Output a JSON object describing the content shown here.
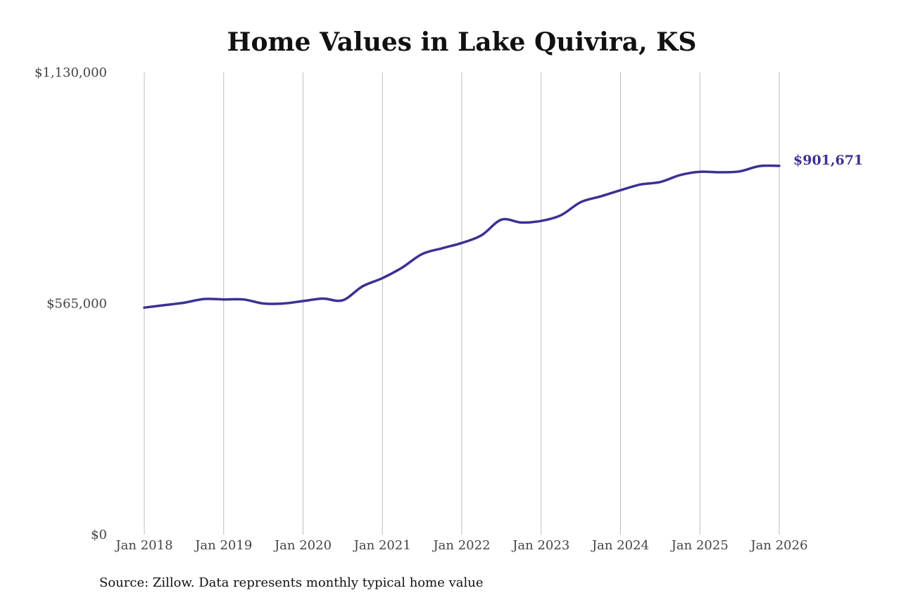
{
  "chart_data": {
    "type": "line",
    "title": "Home Values in Lake Quivira, KS",
    "xlabel": "",
    "ylabel": "",
    "ylim": [
      0,
      1130000
    ],
    "y_ticks": [
      {
        "value": 0,
        "label": "$0"
      },
      {
        "value": 565000,
        "label": "$565,000"
      },
      {
        "value": 1130000,
        "label": "$1,130,000"
      }
    ],
    "x_range": [
      "2018-01",
      "2026-01"
    ],
    "x_ticks": [
      {
        "date": "2018-01",
        "label": "Jan 2018"
      },
      {
        "date": "2019-01",
        "label": "Jan 2019"
      },
      {
        "date": "2020-01",
        "label": "Jan 2020"
      },
      {
        "date": "2021-01",
        "label": "Jan 2021"
      },
      {
        "date": "2022-01",
        "label": "Jan 2022"
      },
      {
        "date": "2023-01",
        "label": "Jan 2023"
      },
      {
        "date": "2024-01",
        "label": "Jan 2024"
      },
      {
        "date": "2025-01",
        "label": "Jan 2025"
      },
      {
        "date": "2026-01",
        "label": "Jan 2026"
      }
    ],
    "grid": {
      "vertical": true,
      "horizontal": false
    },
    "series": [
      {
        "color": "#3b3193",
        "points": [
          {
            "x": "2018-01",
            "y": 555000
          },
          {
            "x": "2018-04",
            "y": 561000
          },
          {
            "x": "2018-07",
            "y": 567000
          },
          {
            "x": "2018-10",
            "y": 576000
          },
          {
            "x": "2019-01",
            "y": 575000
          },
          {
            "x": "2019-04",
            "y": 575000
          },
          {
            "x": "2019-07",
            "y": 565000
          },
          {
            "x": "2019-10",
            "y": 565000
          },
          {
            "x": "2020-01",
            "y": 571000
          },
          {
            "x": "2020-04",
            "y": 577000
          },
          {
            "x": "2020-07",
            "y": 573000
          },
          {
            "x": "2020-10",
            "y": 607000
          },
          {
            "x": "2021-01",
            "y": 627000
          },
          {
            "x": "2021-04",
            "y": 653000
          },
          {
            "x": "2021-07",
            "y": 686000
          },
          {
            "x": "2021-10",
            "y": 700000
          },
          {
            "x": "2022-01",
            "y": 713000
          },
          {
            "x": "2022-04",
            "y": 732000
          },
          {
            "x": "2022-07",
            "y": 770000
          },
          {
            "x": "2022-10",
            "y": 763000
          },
          {
            "x": "2023-01",
            "y": 767000
          },
          {
            "x": "2023-04",
            "y": 781000
          },
          {
            "x": "2023-07",
            "y": 813000
          },
          {
            "x": "2023-10",
            "y": 827000
          },
          {
            "x": "2024-01",
            "y": 842000
          },
          {
            "x": "2024-04",
            "y": 856000
          },
          {
            "x": "2024-07",
            "y": 862000
          },
          {
            "x": "2024-10",
            "y": 879000
          },
          {
            "x": "2025-01",
            "y": 887000
          },
          {
            "x": "2025-04",
            "y": 886000
          },
          {
            "x": "2025-07",
            "y": 888000
          },
          {
            "x": "2025-10",
            "y": 901000
          },
          {
            "x": "2026-01",
            "y": 901671
          }
        ]
      }
    ],
    "end_label": "$901,671",
    "source": "Source: Zillow. Data represents monthly typical home value"
  }
}
